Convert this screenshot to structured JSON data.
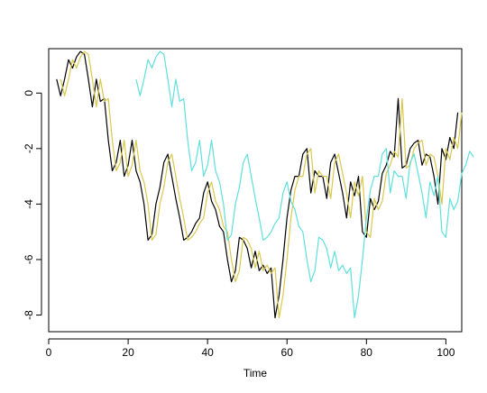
{
  "chart_data": {
    "type": "line",
    "title": "",
    "xlabel": "Time",
    "ylabel": "",
    "xlim": [
      0,
      104
    ],
    "ylim": [
      -8.6,
      1.6
    ],
    "xticks": [
      0,
      20,
      40,
      60,
      80,
      100
    ],
    "yticks": [
      0,
      -2,
      -4,
      -6,
      -8
    ],
    "grid": false,
    "series": [
      {
        "color": "#000000",
        "x_start": 2,
        "values": [
          0.5,
          -0.1,
          0.5,
          1.2,
          0.9,
          1.3,
          1.5,
          1.4,
          0.5,
          -0.5,
          0.5,
          -0.3,
          -0.2,
          -1.7,
          -2.8,
          -2.5,
          -1.7,
          -3.0,
          -2.6,
          -1.7,
          -2.8,
          -3.2,
          -4.0,
          -5.3,
          -5.1,
          -4.0,
          -3.4,
          -2.5,
          -2.2,
          -3.0,
          -3.8,
          -4.5,
          -5.3,
          -5.2,
          -5.0,
          -4.7,
          -4.5,
          -3.6,
          -3.2,
          -3.9,
          -4.2,
          -4.8,
          -5.0,
          -6.0,
          -6.8,
          -6.4,
          -5.2,
          -5.3,
          -5.6,
          -6.3,
          -5.7,
          -6.4,
          -6.2,
          -6.5,
          -6.3,
          -8.1,
          -7.3,
          -6.0,
          -4.5,
          -3.5,
          -3.0,
          -3.0,
          -2.2,
          -2.0,
          -3.6,
          -2.8,
          -3.0,
          -3.0,
          -3.8,
          -2.5,
          -2.2,
          -2.9,
          -3.6,
          -4.5,
          -3.2,
          -3.7,
          -3.0,
          -5.0,
          -5.2,
          -3.8,
          -4.2,
          -3.9,
          -2.9,
          -2.6,
          -2.1,
          -2.3,
          -0.2,
          -2.7,
          -2.6,
          -2.0,
          -1.8,
          -1.7,
          -2.6,
          -2.2,
          -2.3,
          -3.0,
          -4.0,
          -2.0,
          -2.4,
          -1.6,
          -2.0,
          -0.7
        ]
      },
      {
        "color": "#d9c84a",
        "x_start": 3,
        "values": [
          0.5,
          -0.1,
          0.5,
          1.2,
          0.9,
          1.3,
          1.5,
          1.4,
          0.5,
          -0.5,
          0.5,
          -0.3,
          -0.2,
          -1.7,
          -2.8,
          -2.5,
          -1.7,
          -3.0,
          -2.6,
          -1.7,
          -2.8,
          -3.2,
          -4.0,
          -5.3,
          -5.1,
          -4.0,
          -3.4,
          -2.5,
          -2.2,
          -3.0,
          -3.8,
          -4.5,
          -5.3,
          -5.2,
          -5.0,
          -4.7,
          -4.5,
          -3.6,
          -3.2,
          -3.9,
          -4.2,
          -4.8,
          -5.0,
          -6.0,
          -6.8,
          -6.4,
          -5.2,
          -5.3,
          -5.6,
          -6.3,
          -5.7,
          -6.4,
          -6.2,
          -6.5,
          -6.3,
          -8.1,
          -7.3,
          -6.0,
          -4.5,
          -3.5,
          -3.0,
          -3.0,
          -2.2,
          -2.0,
          -3.6,
          -2.8,
          -3.0,
          -3.0,
          -3.8,
          -2.5,
          -2.2,
          -2.9,
          -3.6,
          -4.5,
          -3.2,
          -3.7,
          -3.0,
          -5.0,
          -5.2,
          -3.8,
          -4.2,
          -3.9,
          -2.9,
          -2.6,
          -2.1,
          -2.3,
          -0.2,
          -2.7,
          -2.6,
          -2.0,
          -1.8,
          -1.7,
          -2.6,
          -2.2,
          -2.3,
          -3.0,
          -4.0,
          -2.0,
          -2.4,
          -1.6,
          -2.0,
          -0.7
        ]
      },
      {
        "color": "#5fe0dc",
        "x_start": 22,
        "values": [
          0.5,
          -0.1,
          0.5,
          1.2,
          0.9,
          1.3,
          1.5,
          1.4,
          0.5,
          -0.5,
          0.5,
          -0.3,
          -0.2,
          -1.7,
          -2.8,
          -2.5,
          -1.7,
          -3.0,
          -2.6,
          -1.7,
          -2.8,
          -3.2,
          -4.0,
          -5.3,
          -5.1,
          -4.0,
          -3.4,
          -2.5,
          -2.2,
          -3.0,
          -3.8,
          -4.5,
          -5.3,
          -5.2,
          -5.0,
          -4.7,
          -4.5,
          -3.6,
          -3.2,
          -3.9,
          -4.2,
          -4.8,
          -5.0,
          -6.0,
          -6.8,
          -6.4,
          -5.2,
          -5.3,
          -5.6,
          -6.3,
          -5.7,
          -6.4,
          -6.2,
          -6.5,
          -6.3,
          -8.1,
          -7.3,
          -6.0,
          -4.5,
          -3.5,
          -3.0,
          -3.0,
          -2.2,
          -2.0,
          -3.6,
          -2.8,
          -3.0,
          -3.0,
          -3.8,
          -2.5,
          -2.2,
          -2.9,
          -3.6,
          -4.5,
          -3.2,
          -3.7,
          -3.0,
          -5.0,
          -5.2,
          -3.8,
          -4.2,
          -3.9,
          -2.9,
          -2.6,
          -2.1,
          -2.3
        ]
      }
    ]
  }
}
